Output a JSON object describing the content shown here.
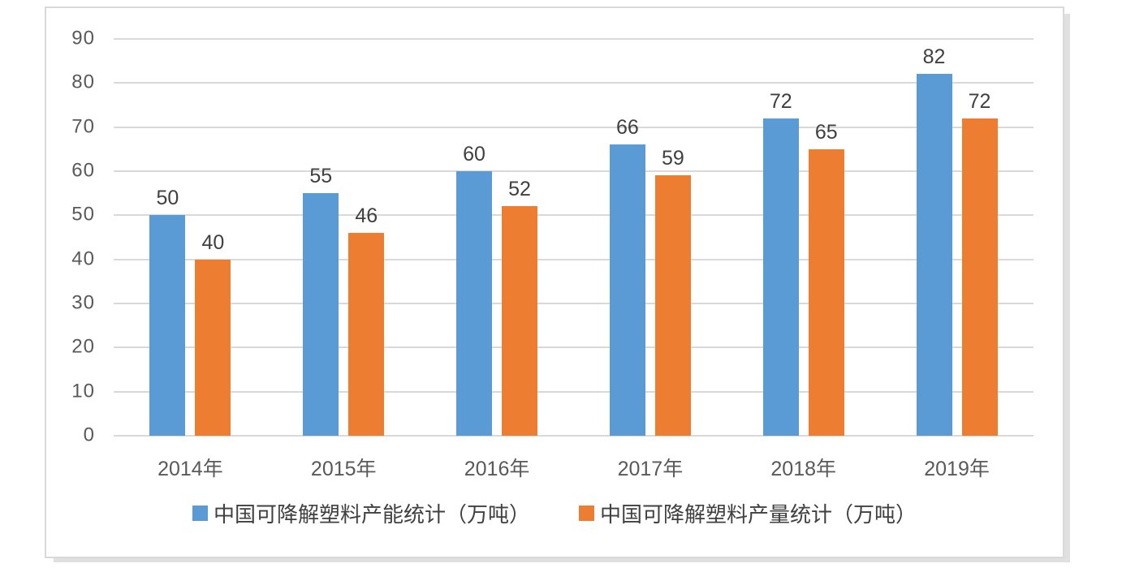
{
  "chart_data": {
    "type": "bar",
    "categories": [
      "2014年",
      "2015年",
      "2016年",
      "2017年",
      "2018年",
      "2019年"
    ],
    "series": [
      {
        "name": "中国可降解塑料产能统计（万吨）",
        "color": "#5B9BD5",
        "values": [
          50,
          55,
          60,
          66,
          72,
          82
        ]
      },
      {
        "name": "中国可降解塑料产量统计（万吨）",
        "color": "#ED7D31",
        "values": [
          40,
          46,
          52,
          59,
          65,
          72
        ]
      }
    ],
    "title": "",
    "xlabel": "",
    "ylabel": "",
    "ylim": [
      0,
      90
    ],
    "y_ticks": [
      0,
      10,
      20,
      30,
      40,
      50,
      60,
      70,
      80,
      90
    ],
    "grid": true,
    "legend_position": "bottom",
    "data_labels_shown": true
  },
  "colors": {
    "series_capacity": "#5B9BD5",
    "series_output": "#ED7D31",
    "gridline": "#D9D9D9",
    "tick_text": "#595959",
    "label_text": "#404040",
    "frame_border": "#D9D9D9",
    "background": "#FFFFFF"
  }
}
